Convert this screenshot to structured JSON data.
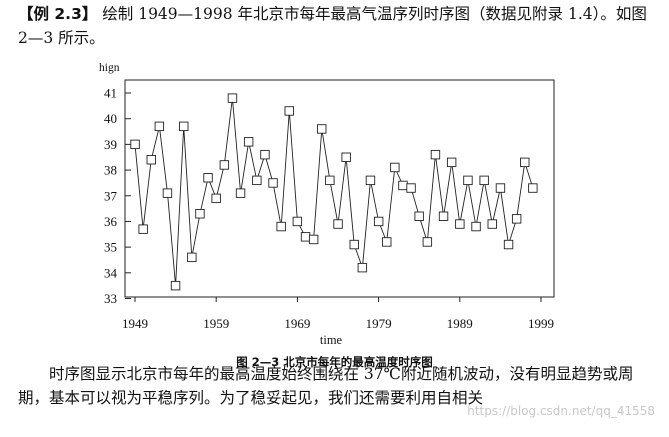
{
  "intro": {
    "example_label": "【例 2.3】",
    "text": " 绘制 1949—1998 年北京市每年最高气温序列时序图（数据见附录 1.4）。如图 2—3 所示。"
  },
  "caption": "图 2—3    北京市每年的最高温度时序图",
  "outro": "时序图显示北京市每年的最高温度始终围绕在 37℃附近随机波动，没有明显趋势或周期，基本可以视为平稳序列。为了稳妥起见，我们还需要利用自相关",
  "watermark": "https://blog.csdn.net/qq_41558",
  "chart_data": {
    "type": "line",
    "ylabel": "hign",
    "xlabel": "time",
    "xlim": [
      1949,
      1999
    ],
    "ylim": [
      33,
      41.5
    ],
    "x_ticks": [
      1949,
      1959,
      1969,
      1979,
      1989,
      1999
    ],
    "y_ticks": [
      33,
      34,
      35,
      36,
      37,
      38,
      39,
      40,
      41
    ],
    "marker": "square",
    "grid": false,
    "x": [
      1949,
      1950,
      1951,
      1952,
      1953,
      1954,
      1955,
      1956,
      1957,
      1958,
      1959,
      1960,
      1961,
      1962,
      1963,
      1964,
      1965,
      1966,
      1967,
      1968,
      1969,
      1970,
      1971,
      1972,
      1973,
      1974,
      1975,
      1976,
      1977,
      1978,
      1979,
      1980,
      1981,
      1982,
      1983,
      1984,
      1985,
      1986,
      1987,
      1988,
      1989,
      1990,
      1991,
      1992,
      1993,
      1994,
      1995,
      1996,
      1997,
      1998
    ],
    "series": [
      {
        "values": [
          39.0,
          35.7,
          38.4,
          39.7,
          37.1,
          33.5,
          39.7,
          34.6,
          36.3,
          37.7,
          36.9,
          38.2,
          40.8,
          37.1,
          39.1,
          37.6,
          38.6,
          37.5,
          35.8,
          40.3,
          36.0,
          35.4,
          35.3,
          39.6,
          37.6,
          35.9,
          38.5,
          35.1,
          34.2,
          37.6,
          36.0,
          35.2,
          38.1,
          37.4,
          37.3,
          36.2,
          35.2,
          38.6,
          36.2,
          38.3,
          35.9,
          37.6,
          35.8,
          37.6,
          35.9,
          37.3,
          35.1,
          36.1,
          38.3,
          37.3
        ]
      }
    ]
  }
}
